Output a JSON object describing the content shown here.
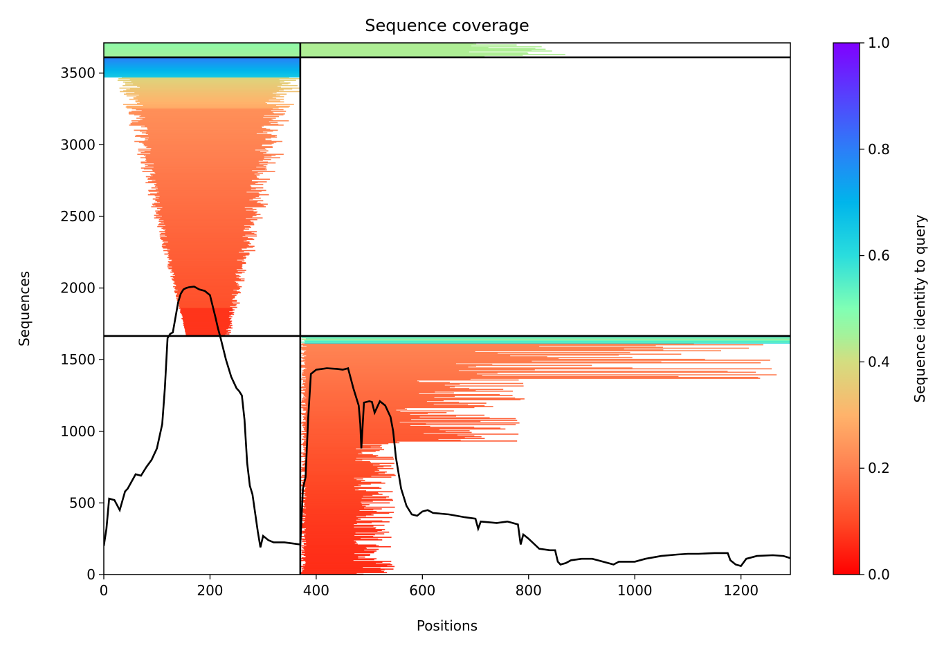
{
  "chart_data": {
    "type": "heatmap",
    "title": "Sequence coverage",
    "xlabel": "Positions",
    "ylabel": "Sequences",
    "xlim": [
      0,
      1293
    ],
    "ylim": [
      0,
      3711
    ],
    "xticks": [
      0,
      200,
      400,
      600,
      800,
      1000,
      1200
    ],
    "yticks": [
      0,
      500,
      1000,
      1500,
      2000,
      2500,
      3000,
      3500
    ],
    "chain_boundary_x": 370,
    "block_boundaries_y": [
      1665,
      3610
    ],
    "colorbar": {
      "label": "Sequence identity to query",
      "colormap": "rainbow_r",
      "range": [
        0.0,
        1.0
      ],
      "ticks": [
        "0.0",
        "0.2",
        "0.4",
        "0.6",
        "0.8",
        "1.0"
      ]
    },
    "coverage_line": {
      "name": "coverage",
      "color": "#000000",
      "x": [
        0,
        5,
        10,
        20,
        30,
        40,
        45,
        60,
        70,
        80,
        90,
        100,
        110,
        115,
        120,
        125,
        130,
        140,
        145,
        150,
        155,
        160,
        170,
        180,
        190,
        200,
        210,
        215,
        220,
        230,
        240,
        250,
        255,
        260,
        265,
        270,
        275,
        280,
        290,
        295,
        300,
        310,
        320,
        330,
        340,
        350,
        360,
        370,
        375,
        380,
        385,
        390,
        400,
        420,
        440,
        450,
        460,
        470,
        480,
        483,
        485,
        490,
        500,
        505,
        510,
        520,
        530,
        540,
        545,
        550,
        560,
        570,
        580,
        590,
        600,
        610,
        620,
        650,
        680,
        700,
        705,
        710,
        740,
        760,
        770,
        780,
        785,
        790,
        800,
        820,
        840,
        850,
        855,
        860,
        870,
        880,
        900,
        920,
        930,
        950,
        960,
        970,
        980,
        1000,
        1020,
        1050,
        1080,
        1100,
        1120,
        1150,
        1170,
        1175,
        1180,
        1190,
        1200,
        1210,
        1230,
        1260,
        1280,
        1293
      ],
      "y": [
        200,
        320,
        530,
        520,
        450,
        580,
        600,
        700,
        690,
        750,
        800,
        880,
        1050,
        1300,
        1650,
        1680,
        1690,
        1900,
        1960,
        1990,
        2000,
        2005,
        2010,
        1990,
        1980,
        1950,
        1800,
        1720,
        1650,
        1500,
        1380,
        1300,
        1280,
        1250,
        1080,
        780,
        620,
        560,
        300,
        190,
        270,
        240,
        225,
        225,
        225,
        220,
        215,
        210,
        600,
        680,
        1100,
        1400,
        1430,
        1440,
        1435,
        1430,
        1440,
        1300,
        1180,
        1050,
        880,
        1200,
        1210,
        1205,
        1130,
        1210,
        1180,
        1100,
        1000,
        820,
        600,
        480,
        420,
        410,
        440,
        450,
        430,
        420,
        400,
        390,
        320,
        370,
        360,
        370,
        360,
        350,
        210,
        280,
        250,
        180,
        170,
        170,
        90,
        70,
        80,
        100,
        110,
        110,
        100,
        80,
        70,
        90,
        90,
        90,
        110,
        130,
        140,
        145,
        145,
        150,
        150,
        150,
        100,
        70,
        60,
        110,
        130,
        135,
        130,
        115
      ]
    }
  }
}
